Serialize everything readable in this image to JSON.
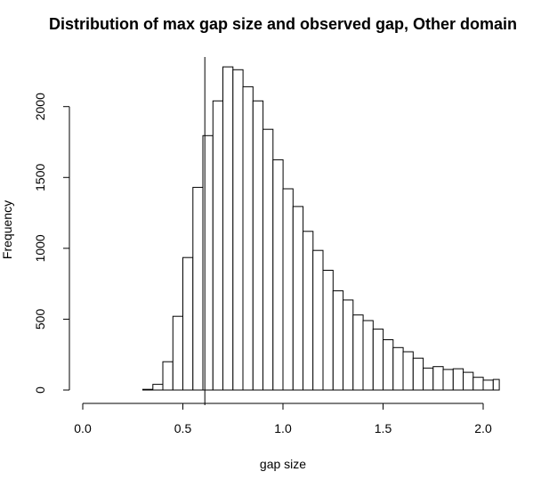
{
  "chart_data": {
    "type": "bar",
    "title": "Distribution of max gap size and observed gap, Other domain",
    "xlabel": "gap size",
    "ylabel": "Frequency",
    "xlim": [
      0.0,
      2.08
    ],
    "ylim": [
      0,
      2350
    ],
    "x_ticks": [
      "0.0",
      "0.5",
      "1.0",
      "1.5",
      "2.0"
    ],
    "x_tick_values": [
      0.0,
      0.5,
      1.0,
      1.5,
      2.0
    ],
    "y_ticks": [
      "0",
      "500",
      "1000",
      "1500",
      "2000"
    ],
    "y_tick_values": [
      0,
      500,
      1000,
      1500,
      2000
    ],
    "bin_width": 0.05,
    "bin_starts": [
      0.3,
      0.35,
      0.4,
      0.45,
      0.5,
      0.55,
      0.6,
      0.65,
      0.7,
      0.75,
      0.8,
      0.85,
      0.9,
      0.95,
      1.0,
      1.05,
      1.1,
      1.15,
      1.2,
      1.25,
      1.3,
      1.35,
      1.4,
      1.45,
      1.5,
      1.55,
      1.6,
      1.65,
      1.7,
      1.75,
      1.8,
      1.85,
      1.9,
      1.95,
      2.0,
      2.05
    ],
    "values": [
      5,
      40,
      200,
      520,
      935,
      1430,
      1795,
      2040,
      2280,
      2260,
      2140,
      2040,
      1840,
      1625,
      1420,
      1295,
      1120,
      985,
      845,
      700,
      635,
      530,
      490,
      430,
      355,
      300,
      270,
      225,
      155,
      165,
      145,
      150,
      125,
      90,
      70,
      75
    ],
    "observed_gap": 0.61,
    "grid": false,
    "legend": "none"
  }
}
